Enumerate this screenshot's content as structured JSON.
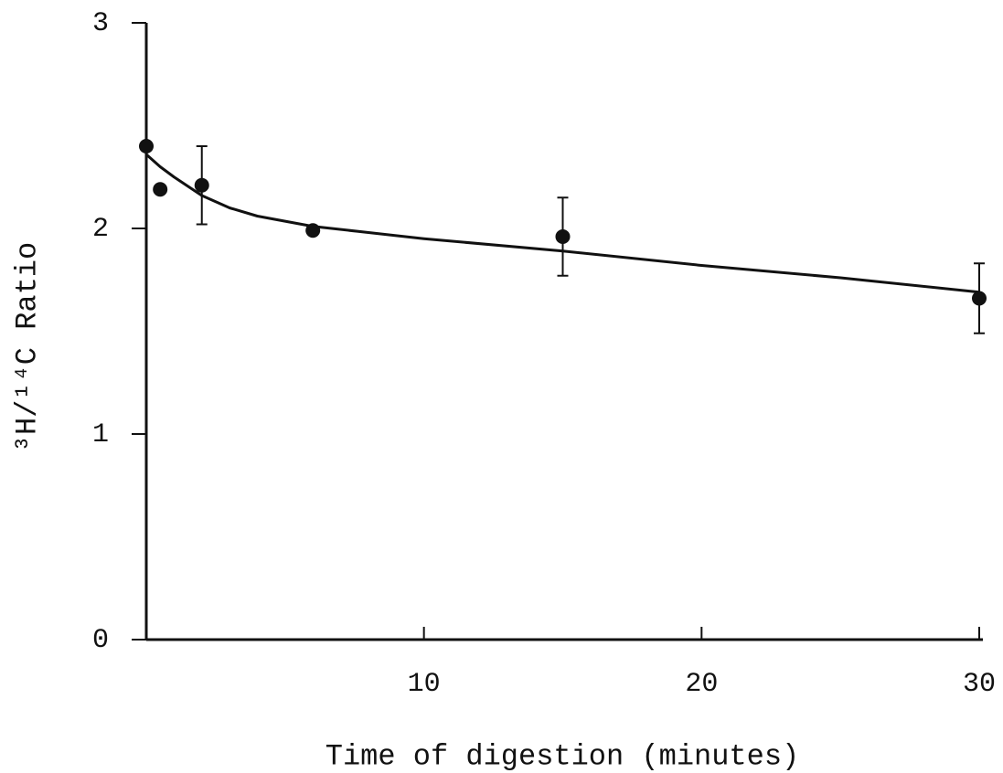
{
  "chart_data": {
    "type": "scatter",
    "xlabel": "Time of digestion (minutes)",
    "ylabel": "³H/¹⁴C Ratio",
    "xlim": [
      0,
      30
    ],
    "ylim": [
      0,
      3
    ],
    "xticks": [
      10,
      20,
      30
    ],
    "yticks": [
      0,
      1,
      2,
      3
    ],
    "color": "#111111",
    "series": [
      {
        "x": [
          0,
          0.5,
          2,
          6,
          15,
          30
        ],
        "values": [
          2.4,
          2.19,
          2.21,
          1.99,
          1.96,
          1.66
        ],
        "errors": [
          null,
          null,
          0.19,
          null,
          0.19,
          0.17
        ],
        "color": "#111111"
      },
      {
        "x": [
          0,
          0.5,
          1,
          2,
          3,
          4,
          6,
          10,
          15,
          20,
          25,
          30
        ],
        "values": [
          2.36,
          2.3,
          2.25,
          2.16,
          2.1,
          2.06,
          2.01,
          1.95,
          1.89,
          1.82,
          1.76,
          1.69
        ],
        "color": "#111111"
      }
    ]
  }
}
